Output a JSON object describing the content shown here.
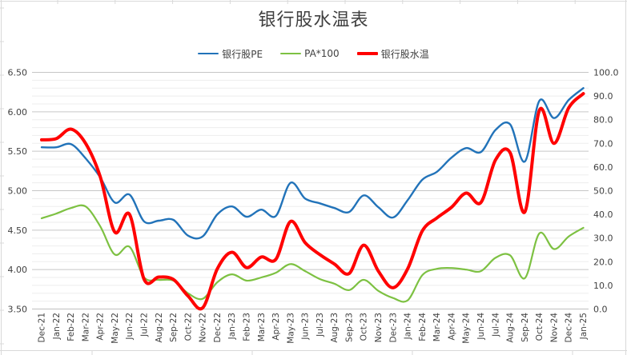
{
  "theme": {
    "background": "#FFFFFF",
    "grid_major": "#C6C6C6",
    "grid_minor": "#EDEDED",
    "axis_line": "#BFBFBF",
    "tick_label_color": "#404040",
    "title_color": "#3F3F3F",
    "sheet_edge_color": "#D9D9D9"
  },
  "chart_data": {
    "type": "line",
    "title": "银行股水温表",
    "legend_position": "top",
    "grid": {
      "horizontal_major": true,
      "horizontal_minor": true,
      "vertical": false
    },
    "categories": [
      "Dec-21",
      "Jan-22",
      "Feb-22",
      "Mar-22",
      "Apr-22",
      "May-22",
      "Jun-22",
      "Jul-22",
      "Aug-22",
      "Sep-22",
      "Oct-22",
      "Nov-22",
      "Dec-22",
      "Jan-23",
      "Feb-23",
      "Mar-23",
      "Apr-23",
      "May-23",
      "Jun-23",
      "Jul-23",
      "Aug-23",
      "Sep-23",
      "Oct-23",
      "Nov-23",
      "Dec-23",
      "Jan-24",
      "Feb-24",
      "Mar-24",
      "Apr-24",
      "May-24",
      "Jun-24",
      "Jul-24",
      "Aug-24",
      "Sep-24",
      "Oct-24",
      "Nov-24",
      "Dec-24",
      "Jan-25"
    ],
    "series": [
      {
        "id": "pe",
        "name": "银行股PE",
        "axis": "left",
        "color": "#2273B9",
        "stroke_width": 2.4,
        "values": [
          5.55,
          5.55,
          5.59,
          5.41,
          5.17,
          4.85,
          4.95,
          4.61,
          4.62,
          4.63,
          4.43,
          4.42,
          4.7,
          4.8,
          4.67,
          4.76,
          4.68,
          5.1,
          4.9,
          4.84,
          4.78,
          4.73,
          4.94,
          4.79,
          4.66,
          4.88,
          5.14,
          5.24,
          5.42,
          5.54,
          5.49,
          5.77,
          5.84,
          5.37,
          6.14,
          5.92,
          6.15,
          6.3
        ]
      },
      {
        "id": "pa",
        "name": "PA*100",
        "axis": "left",
        "color": "#7DC142",
        "stroke_width": 2.2,
        "values": [
          4.65,
          4.71,
          4.78,
          4.8,
          4.55,
          4.19,
          4.29,
          3.9,
          3.87,
          3.86,
          3.7,
          3.63,
          3.84,
          3.94,
          3.86,
          3.9,
          3.96,
          4.07,
          3.98,
          3.88,
          3.82,
          3.74,
          3.87,
          3.73,
          3.64,
          3.61,
          3.93,
          4.01,
          4.02,
          4.0,
          3.98,
          4.15,
          4.18,
          3.89,
          4.46,
          4.26,
          4.42,
          4.53
        ]
      },
      {
        "id": "temp",
        "name": "银行股水温",
        "axis": "right",
        "color": "#FF0000",
        "stroke_width": 4,
        "values": [
          71.5,
          72,
          76,
          70,
          56,
          32.5,
          40,
          12.5,
          13.5,
          12.5,
          5.5,
          0.5,
          17,
          24,
          17.5,
          22,
          21,
          37,
          28,
          23,
          19,
          15,
          27,
          16,
          9,
          17,
          33,
          38.5,
          43,
          49,
          45,
          63,
          66,
          41,
          84,
          70,
          85,
          91
        ]
      }
    ],
    "left_axis": {
      "min": 3.5,
      "max": 6.5,
      "major_step": 0.5,
      "minor_step": 0.1,
      "tick_labels": [
        "6.50",
        "6.00",
        "5.50",
        "5.00",
        "4.50",
        "4.00",
        "3.50"
      ]
    },
    "right_axis": {
      "min": 0.0,
      "max": 100.0,
      "major_step": 10,
      "tick_labels": [
        "100.0",
        "90.0",
        "80.0",
        "70.0",
        "60.0",
        "50.0",
        "40.0",
        "30.0",
        "20.0",
        "10.0",
        "0.0"
      ]
    },
    "x_axis": {
      "label_rotation": -90
    }
  }
}
